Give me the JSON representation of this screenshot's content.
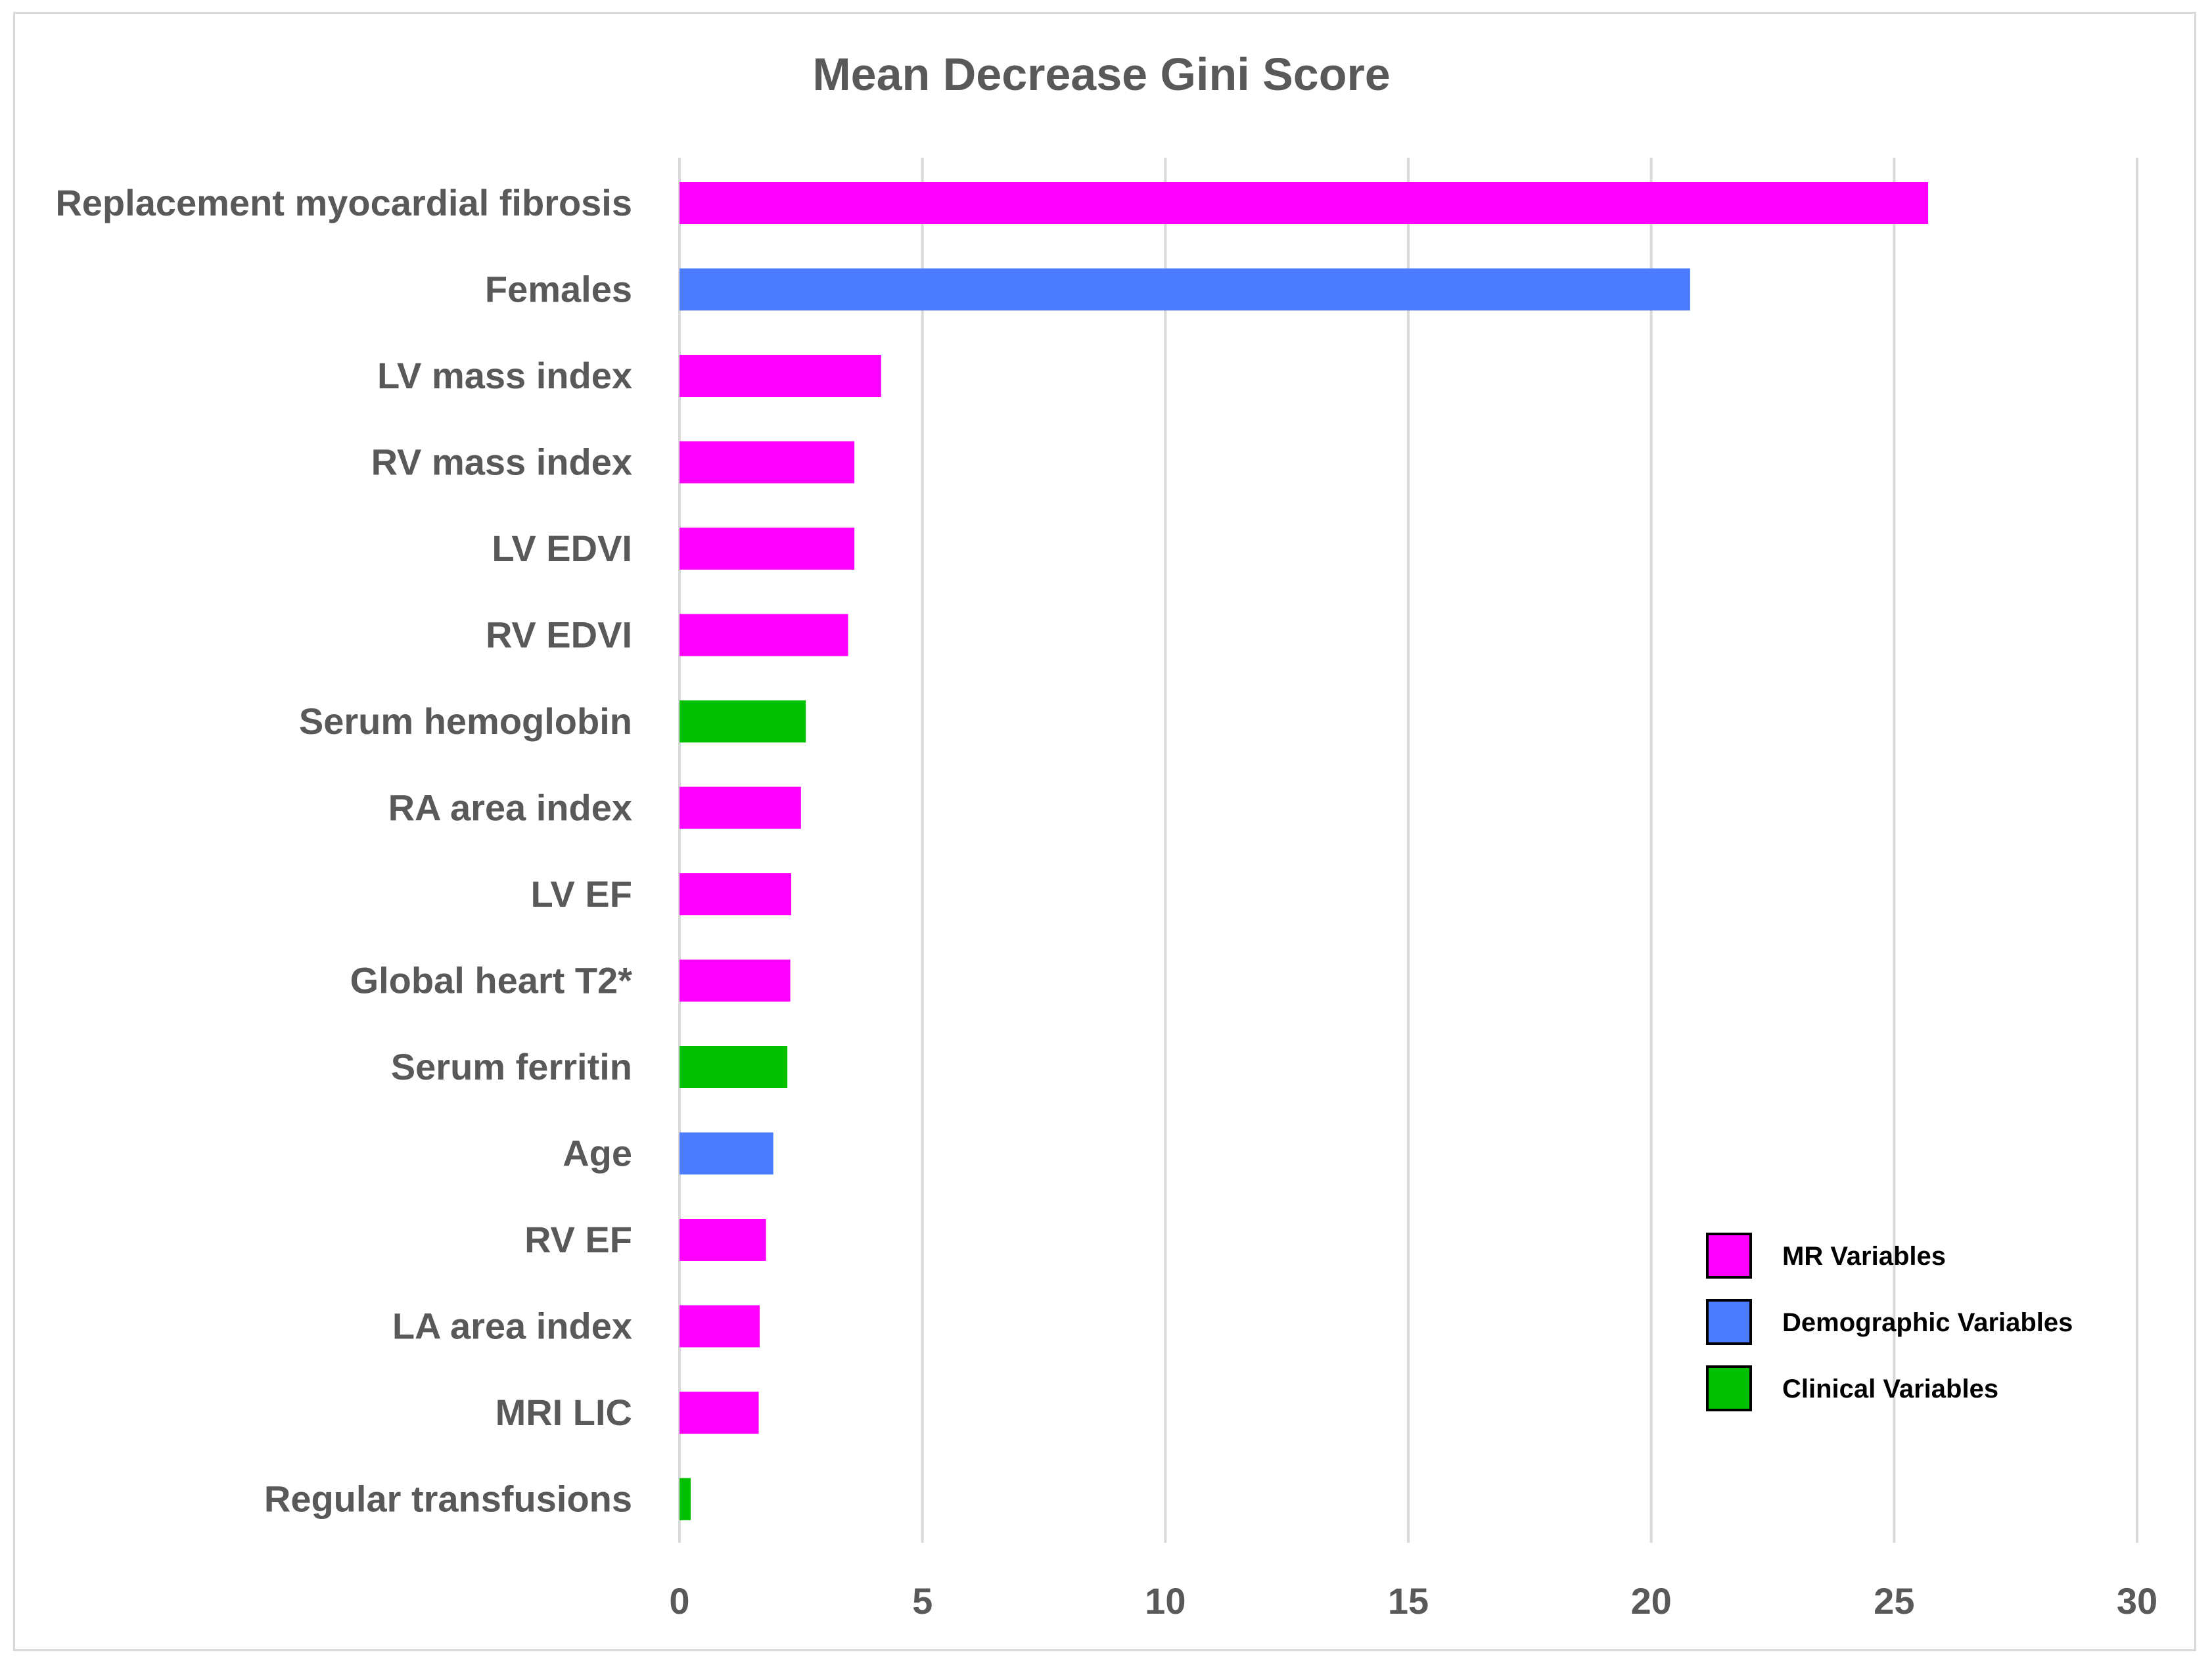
{
  "chart_data": {
    "type": "bar",
    "orientation": "horizontal",
    "title": "Mean Decrease Gini Score",
    "xlabel": "",
    "ylabel": "",
    "xlim": [
      0,
      30
    ],
    "x_ticks": [
      0,
      5,
      10,
      15,
      20,
      25,
      30
    ],
    "grid": "vertical",
    "categories": [
      "Replacement myocardial fibrosis",
      "Females",
      "LV mass index",
      "RV mass index",
      "LV EDVI",
      "RV EDVI",
      "Serum hemoglobin",
      "RA area index",
      "LV EF",
      "Global heart T2*",
      "Serum ferritin",
      "Age",
      "RV EF",
      "LA area index",
      "MRI LIC",
      "Regular transfusions"
    ],
    "values": [
      25.7,
      20.8,
      4.15,
      3.6,
      3.6,
      3.47,
      2.6,
      2.5,
      2.3,
      2.28,
      2.22,
      1.93,
      1.78,
      1.65,
      1.63,
      0.23
    ],
    "groups": [
      "mr",
      "demographic",
      "mr",
      "mr",
      "mr",
      "mr",
      "clinical",
      "mr",
      "mr",
      "mr",
      "clinical",
      "demographic",
      "mr",
      "mr",
      "mr",
      "clinical"
    ],
    "legend": {
      "position": "bottom-right",
      "entries": [
        {
          "key": "mr",
          "label": "MR Variables",
          "color": "#FF00FF"
        },
        {
          "key": "demographic",
          "label": "Demographic Variables",
          "color": "#4B7BFF"
        },
        {
          "key": "clinical",
          "label": "Clinical Variables",
          "color": "#00C000"
        }
      ]
    }
  }
}
